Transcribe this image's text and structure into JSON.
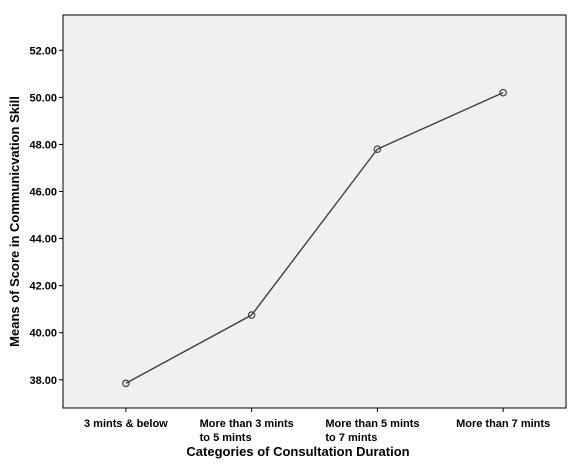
{
  "chart_data": {
    "type": "line",
    "title": "",
    "xlabel": "Categories of Consultation Duration",
    "ylabel": "Means of Score in Communicvation Skill",
    "categories": [
      [
        "3 mints & below"
      ],
      [
        "More than 3 mints",
        "to 5 mints"
      ],
      [
        "More than 5 mints",
        "to 7 mints"
      ],
      [
        "More than 7 mints"
      ]
    ],
    "values": [
      37.85,
      40.75,
      47.8,
      50.2
    ],
    "ylim": [
      36.8,
      53.5
    ],
    "yticks": [
      38,
      40,
      42,
      44,
      46,
      48,
      50,
      52
    ],
    "ytick_labels": [
      "38.00",
      "40.00",
      "42.00",
      "44.00",
      "46.00",
      "48.00",
      "50.00",
      "52.00"
    ],
    "grid": false,
    "legend": "none",
    "colors": {
      "plot_background": "#f0f0f0",
      "line": "#404040",
      "marker": "#404040",
      "axis": "#000000"
    }
  }
}
